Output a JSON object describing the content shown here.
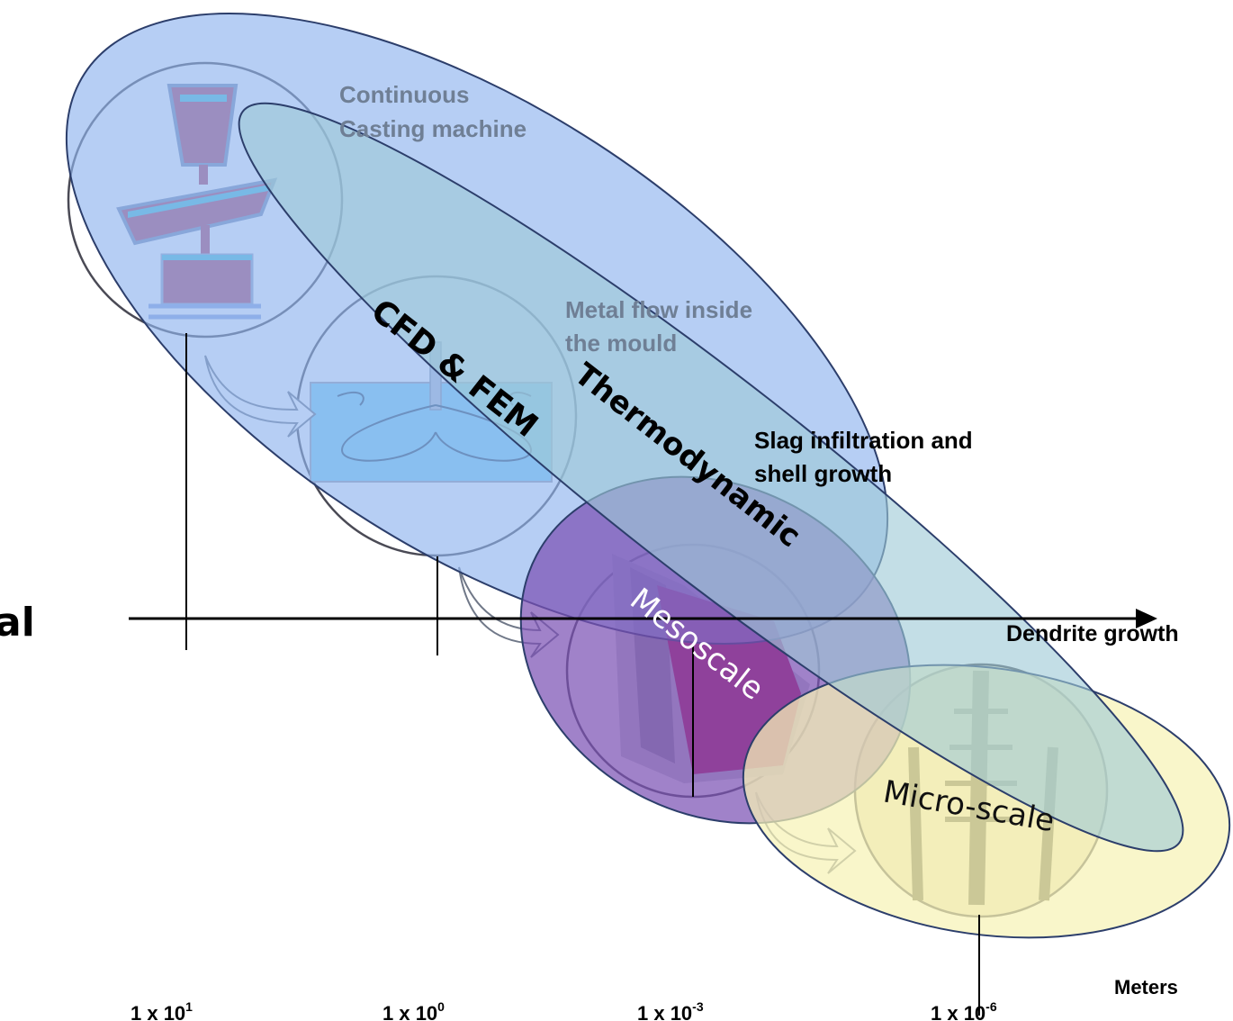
{
  "labels": {
    "continuous_line1": "Continuous",
    "continuous_line2": "Casting machine",
    "metal_flow_line1": "Metal flow inside",
    "metal_flow_line2": "the mould",
    "slag_line1": "Slag infiltration and",
    "slag_line2": "shell growth",
    "dendrite": "Dendrite growth",
    "left_partial": "al"
  },
  "regions": {
    "cfd_fem": "CFD & FEM",
    "thermodynamic": "Thermodynamic",
    "mesoscale": "Mesoscale",
    "microscale": "Micro-scale"
  },
  "axis": {
    "unit": "Meters",
    "ticks": [
      {
        "base": "1 x 10",
        "exp": "1"
      },
      {
        "base": "1 x 10",
        "exp": "0"
      },
      {
        "base": "1 x 10",
        "exp": "-3"
      },
      {
        "base": "1 x 10",
        "exp": "-6"
      }
    ]
  },
  "colors": {
    "cfd_fill": "#8fb4ee",
    "thermo_fill": "#9ec9d6",
    "meso_fill": "#7c52b4",
    "micro_fill": "#f7f2b6",
    "outline": "#2c3e6b",
    "casting_red": "#c03060",
    "mould_blue": "#6ec8ee"
  }
}
